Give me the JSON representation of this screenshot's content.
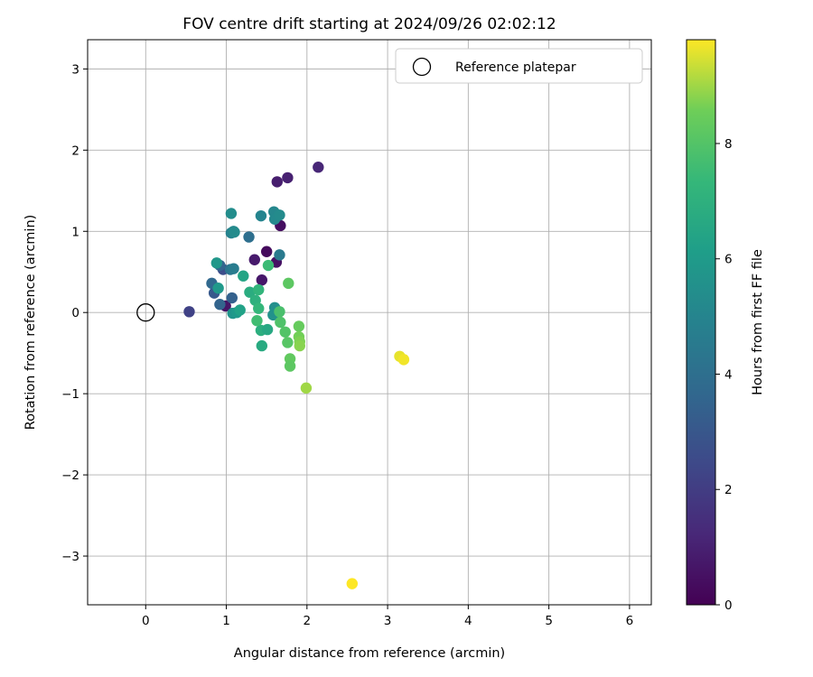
{
  "chart_data": {
    "type": "scatter",
    "title": "FOV centre drift starting at 2024/09/26 02:02:12",
    "xlabel": "Angular distance from reference (arcmin)",
    "ylabel": "Rotation from reference (arcmin)",
    "xlim": [
      -0.72,
      6.27
    ],
    "ylim": [
      -3.6,
      3.36
    ],
    "xticks": [
      0,
      1,
      2,
      3,
      4,
      5,
      6
    ],
    "yticks": [
      -3,
      -2,
      -1,
      0,
      1,
      2,
      3
    ],
    "xtick_labels": [
      "0",
      "1",
      "2",
      "3",
      "4",
      "5",
      "6"
    ],
    "ytick_labels": [
      "−3",
      "−2",
      "−1",
      "0",
      "1",
      "2",
      "3"
    ],
    "grid": true,
    "legend": {
      "position": "top-right",
      "entries": [
        "Reference platepar"
      ]
    },
    "reference_point": {
      "x": 0,
      "y": 0,
      "marker": "open-circle"
    },
    "colorbar": {
      "label": "Hours from first FF file",
      "colormap": "viridis",
      "range": [
        0,
        9.8
      ],
      "ticks": [
        0,
        2,
        4,
        6,
        8
      ],
      "tick_labels": [
        "0",
        "2",
        "4",
        "6",
        "8"
      ]
    },
    "points": [
      {
        "x": 1.5,
        "y": 0.75,
        "t": 0.3
      },
      {
        "x": 1.62,
        "y": 0.62,
        "t": 0.5
      },
      {
        "x": 1.67,
        "y": 1.07,
        "t": 0.4
      },
      {
        "x": 1.63,
        "y": 1.61,
        "t": 0.9
      },
      {
        "x": 1.76,
        "y": 1.66,
        "t": 1.0
      },
      {
        "x": 2.14,
        "y": 1.79,
        "t": 1.2
      },
      {
        "x": 1.35,
        "y": 0.65,
        "t": 0.8
      },
      {
        "x": 1.44,
        "y": 0.4,
        "t": 0.7
      },
      {
        "x": 0.99,
        "y": 0.08,
        "t": 0.6
      },
      {
        "x": 0.54,
        "y": 0.01,
        "t": 2.2
      },
      {
        "x": 0.96,
        "y": 0.53,
        "t": 2.6
      },
      {
        "x": 0.85,
        "y": 0.24,
        "t": 3.1
      },
      {
        "x": 0.92,
        "y": 0.1,
        "t": 3.5
      },
      {
        "x": 1.07,
        "y": 0.18,
        "t": 3.4
      },
      {
        "x": 0.82,
        "y": 0.36,
        "t": 3.7
      },
      {
        "x": 0.92,
        "y": 0.58,
        "t": 3.6
      },
      {
        "x": 1.28,
        "y": 0.93,
        "t": 4.0
      },
      {
        "x": 1.05,
        "y": 0.53,
        "t": 4.3
      },
      {
        "x": 1.09,
        "y": 0.54,
        "t": 4.6
      },
      {
        "x": 1.66,
        "y": 0.71,
        "t": 4.5
      },
      {
        "x": 1.06,
        "y": 0.98,
        "t": 4.9
      },
      {
        "x": 1.09,
        "y": 1.0,
        "t": 5.1
      },
      {
        "x": 1.1,
        "y": 0.99,
        "t": 5.3
      },
      {
        "x": 1.06,
        "y": 1.22,
        "t": 5.4
      },
      {
        "x": 1.43,
        "y": 1.19,
        "t": 5.0
      },
      {
        "x": 1.59,
        "y": 1.24,
        "t": 5.1
      },
      {
        "x": 1.6,
        "y": 1.15,
        "t": 5.2
      },
      {
        "x": 1.66,
        "y": 1.2,
        "t": 5.3
      },
      {
        "x": 1.6,
        "y": 0.06,
        "t": 5.5
      },
      {
        "x": 1.58,
        "y": -0.03,
        "t": 5.6
      },
      {
        "x": 0.88,
        "y": 0.61,
        "t": 5.8
      },
      {
        "x": 0.9,
        "y": 0.3,
        "t": 5.9
      },
      {
        "x": 1.08,
        "y": -0.01,
        "t": 5.7
      },
      {
        "x": 1.13,
        "y": 0.0,
        "t": 5.9
      },
      {
        "x": 1.17,
        "y": 0.03,
        "t": 6.3
      },
      {
        "x": 1.21,
        "y": 0.45,
        "t": 6.4
      },
      {
        "x": 1.29,
        "y": 0.25,
        "t": 6.8
      },
      {
        "x": 1.36,
        "y": 0.15,
        "t": 7.0
      },
      {
        "x": 1.4,
        "y": 0.28,
        "t": 7.2
      },
      {
        "x": 1.4,
        "y": 0.05,
        "t": 7.3
      },
      {
        "x": 1.43,
        "y": -0.22,
        "t": 6.9
      },
      {
        "x": 1.44,
        "y": -0.41,
        "t": 6.7
      },
      {
        "x": 1.51,
        "y": -0.21,
        "t": 6.6
      },
      {
        "x": 1.52,
        "y": 0.58,
        "t": 7.5
      },
      {
        "x": 1.38,
        "y": -0.1,
        "t": 7.6
      },
      {
        "x": 1.66,
        "y": 0.01,
        "t": 7.8
      },
      {
        "x": 1.67,
        "y": -0.12,
        "t": 7.9
      },
      {
        "x": 1.73,
        "y": -0.24,
        "t": 8.0
      },
      {
        "x": 1.76,
        "y": -0.37,
        "t": 8.1
      },
      {
        "x": 1.77,
        "y": 0.36,
        "t": 8.2
      },
      {
        "x": 1.79,
        "y": -0.57,
        "t": 8.3
      },
      {
        "x": 1.79,
        "y": -0.66,
        "t": 8.2
      },
      {
        "x": 1.9,
        "y": -0.17,
        "t": 8.4
      },
      {
        "x": 1.9,
        "y": -0.3,
        "t": 8.6
      },
      {
        "x": 1.91,
        "y": -0.36,
        "t": 8.7
      },
      {
        "x": 1.91,
        "y": -0.41,
        "t": 8.8
      },
      {
        "x": 1.99,
        "y": -0.93,
        "t": 9.0
      },
      {
        "x": 3.15,
        "y": -0.54,
        "t": 9.6
      },
      {
        "x": 3.2,
        "y": -0.58,
        "t": 9.7
      },
      {
        "x": 2.56,
        "y": -3.34,
        "t": 9.8
      }
    ]
  }
}
